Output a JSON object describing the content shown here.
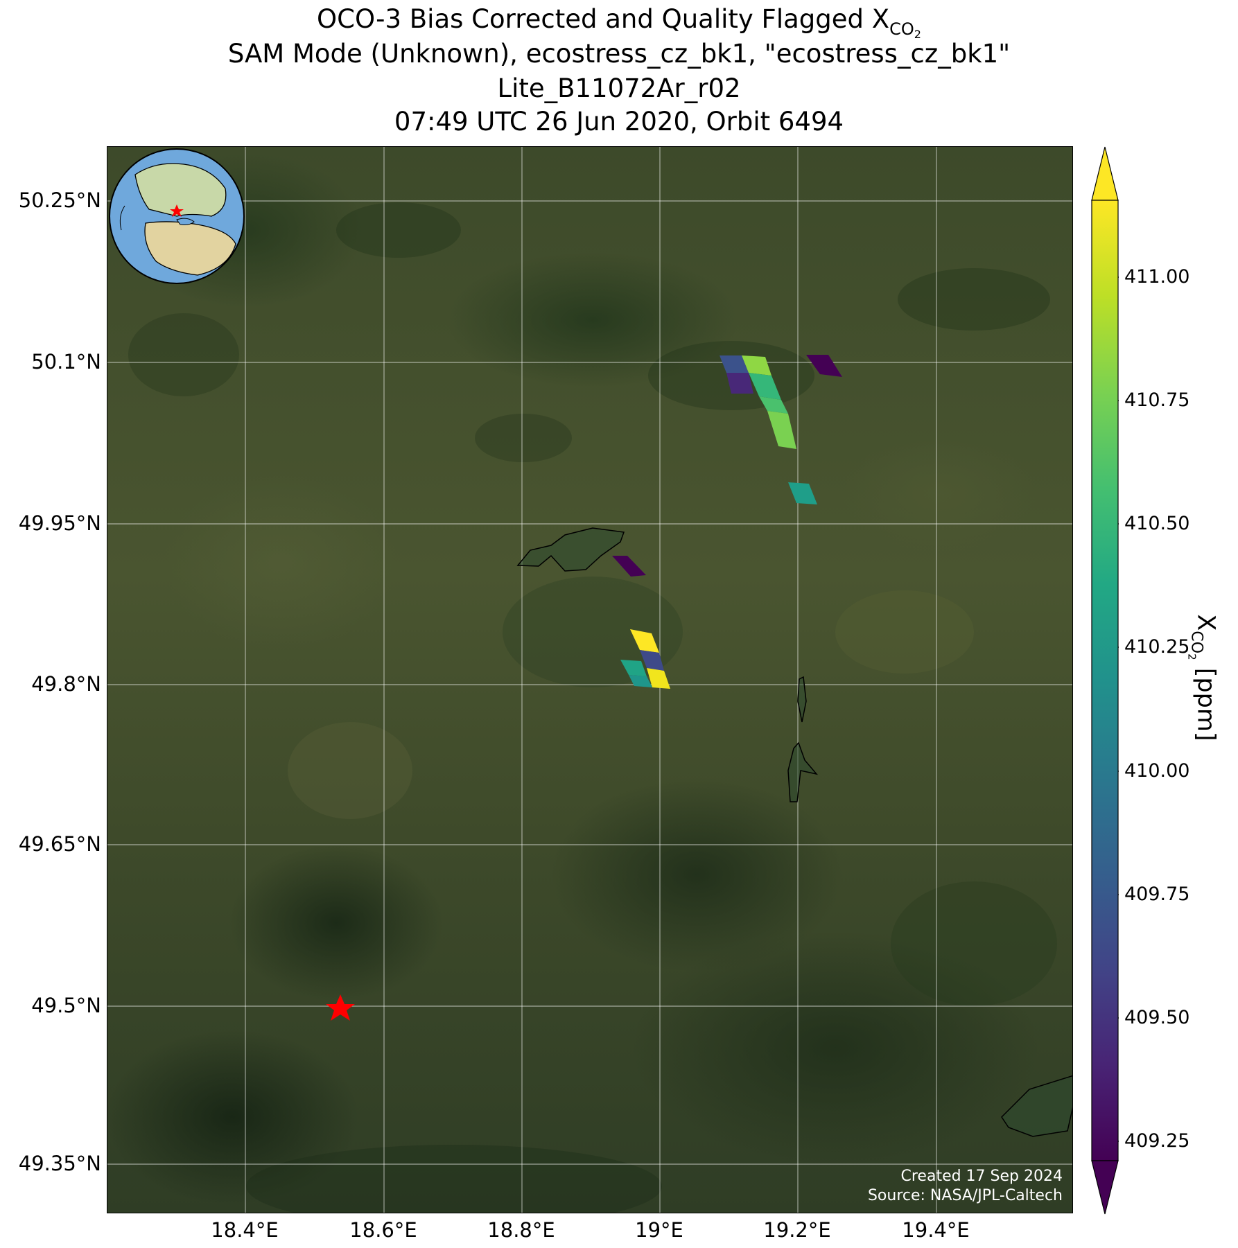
{
  "title": {
    "line1_prefix": "OCO-3 Bias Corrected and Quality Flagged X",
    "line1_sub": "CO",
    "line1_subsub": "2",
    "line2": "SAM Mode (Unknown), ecostress_cz_bk1, \"ecostress_cz_bk1\"",
    "line3": "Lite_B11072Ar_r02",
    "line4": "07:49 UTC 26 Jun 2020, Orbit 6494"
  },
  "axes": {
    "lat_ticks": [
      "50.25°N",
      "50.1°N",
      "49.95°N",
      "49.8°N",
      "49.65°N",
      "49.5°N",
      "49.35°N"
    ],
    "lon_ticks": [
      "18.4°E",
      "18.6°E",
      "18.8°E",
      "19°E",
      "19.2°E",
      "19.4°E"
    ]
  },
  "colorbar": {
    "ticks": [
      "411.00",
      "410.75",
      "410.50",
      "410.25",
      "410.00",
      "409.75",
      "409.50",
      "409.25"
    ],
    "label_prefix": "X",
    "label_sub": "CO",
    "label_subsub": "2",
    "label_suffix": " [ppm]",
    "colormap": "viridis"
  },
  "credits": {
    "created": "Created 17 Sep 2024",
    "source": "Source: NASA/JPL-Caltech"
  },
  "target_marker": {
    "lon": 18.54,
    "lat": 49.5,
    "symbol": "red-star"
  },
  "colors": {
    "marker": "#ff0000",
    "ocean": "#6fa8dc",
    "low": "#440154",
    "high": "#fde725"
  }
}
